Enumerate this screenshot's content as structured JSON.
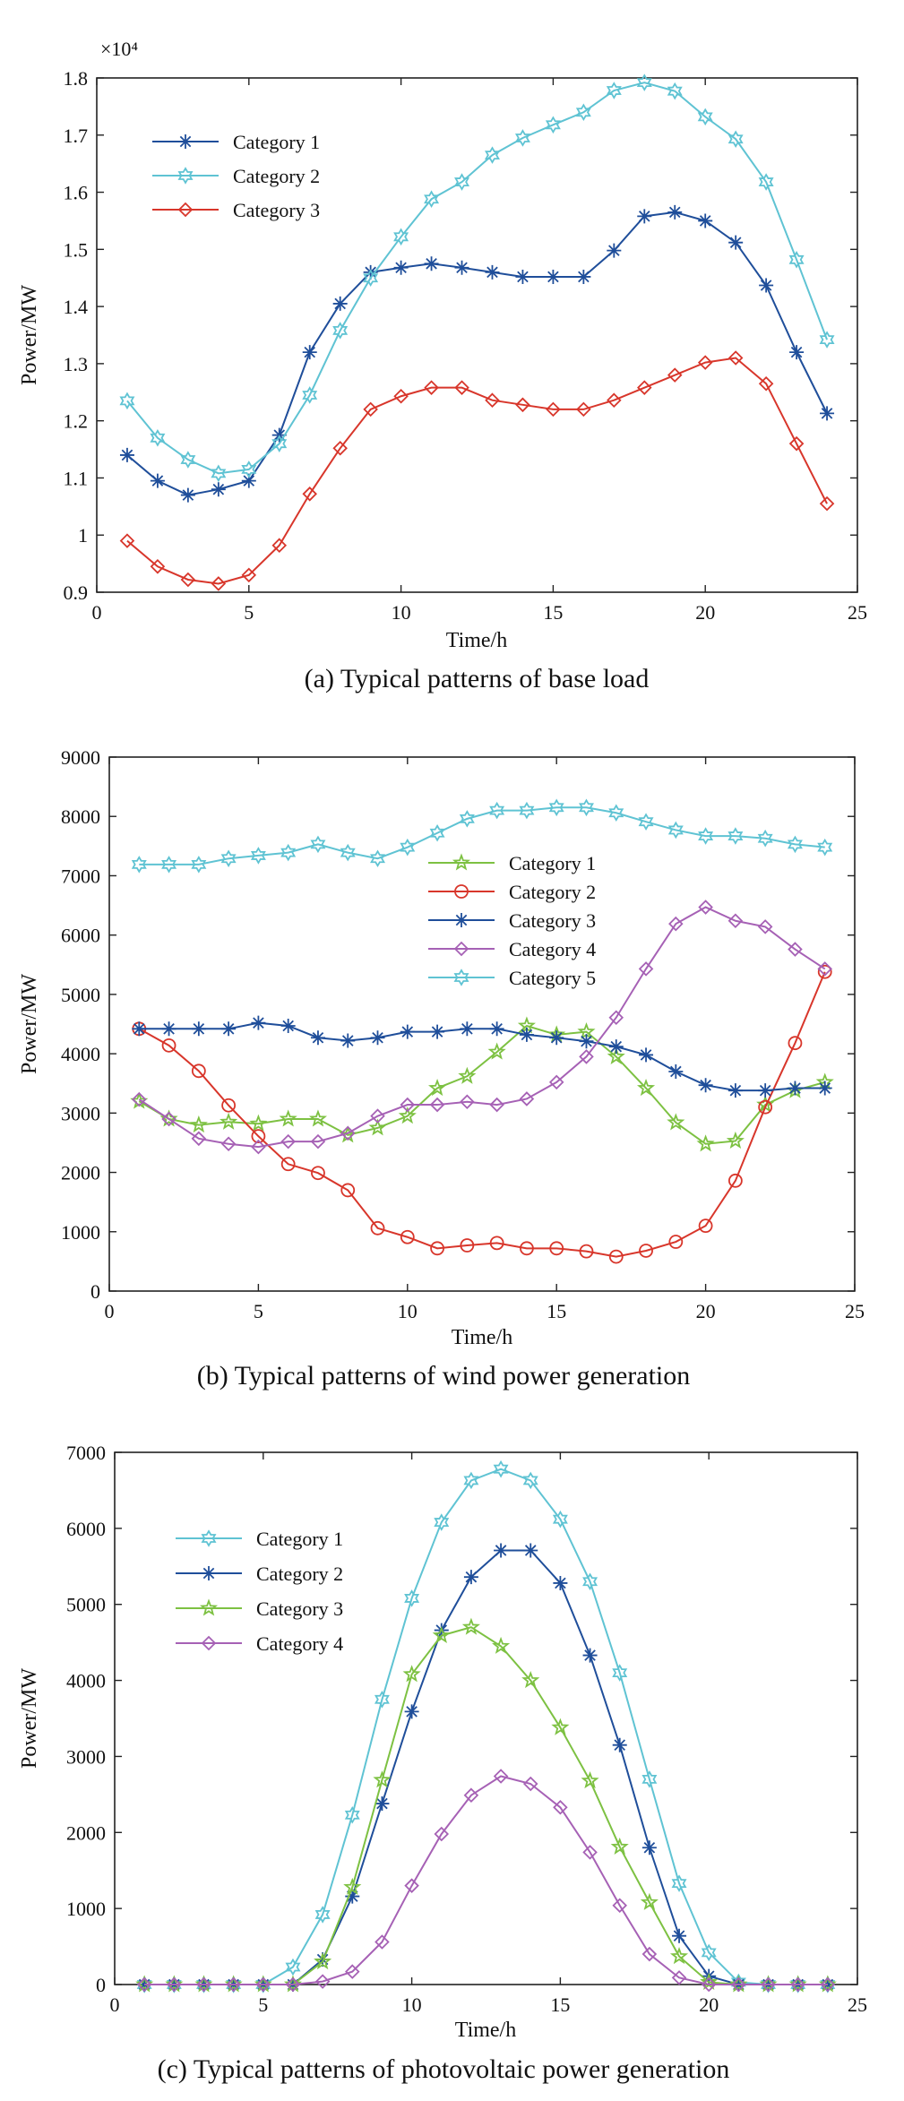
{
  "chart_data": [
    {
      "type": "line",
      "caption": "(a) Typical patterns of base load",
      "xlabel": "Time/h",
      "ylabel": "Power/MW",
      "xlim": [
        0,
        25
      ],
      "ylim": [
        0.9,
        1.8
      ],
      "x_ticks": [
        "0",
        "5",
        "10",
        "15",
        "20",
        "25"
      ],
      "y_ticks": [
        "0.9",
        "1",
        "1.1",
        "1.2",
        "1.3",
        "1.4",
        "1.5",
        "1.6",
        "1.7",
        "1.8"
      ],
      "y_exponent": "×10⁴",
      "legend_position": "upper-left",
      "x": [
        1,
        2,
        3,
        4,
        5,
        6,
        7,
        8,
        9,
        10,
        11,
        12,
        13,
        14,
        15,
        16,
        17,
        18,
        19,
        20,
        21,
        22,
        23,
        24
      ],
      "series": [
        {
          "name": "Category 1",
          "color": "#1f4e9a",
          "marker": "asterisk",
          "values": [
            1.14,
            1.095,
            1.07,
            1.08,
            1.095,
            1.175,
            1.32,
            1.405,
            1.46,
            1.468,
            1.475,
            1.468,
            1.46,
            1.452,
            1.452,
            1.452,
            1.498,
            1.558,
            1.565,
            1.55,
            1.512,
            1.437,
            1.32,
            1.213
          ]
        },
        {
          "name": "Category 2",
          "color": "#5fc3d3",
          "marker": "hexagram",
          "values": [
            1.235,
            1.17,
            1.132,
            1.108,
            1.115,
            1.16,
            1.245,
            1.358,
            1.45,
            1.522,
            1.588,
            1.618,
            1.665,
            1.695,
            1.718,
            1.74,
            1.778,
            1.792,
            1.777,
            1.732,
            1.693,
            1.618,
            1.482,
            1.342
          ]
        },
        {
          "name": "Category 3",
          "color": "#d8362b",
          "marker": "diamond",
          "values": [
            0.99,
            0.945,
            0.922,
            0.915,
            0.93,
            0.982,
            1.072,
            1.152,
            1.22,
            1.243,
            1.258,
            1.258,
            1.236,
            1.228,
            1.22,
            1.22,
            1.236,
            1.258,
            1.28,
            1.302,
            1.31,
            1.265,
            1.16,
            1.055
          ]
        }
      ]
    },
    {
      "type": "line",
      "caption": "(b) Typical patterns of wind power generation",
      "xlabel": "Time/h",
      "ylabel": "Power/MW",
      "xlim": [
        0,
        25
      ],
      "ylim": [
        0,
        9000
      ],
      "x_ticks": [
        "0",
        "5",
        "10",
        "15",
        "20",
        "25"
      ],
      "y_ticks": [
        "0",
        "1000",
        "2000",
        "3000",
        "4000",
        "5000",
        "6000",
        "7000",
        "8000",
        "9000"
      ],
      "legend_position": "center",
      "x": [
        1,
        2,
        3,
        4,
        5,
        6,
        7,
        8,
        9,
        10,
        11,
        12,
        13,
        14,
        15,
        16,
        17,
        18,
        19,
        20,
        21,
        22,
        23,
        24
      ],
      "series": [
        {
          "name": "Category 1",
          "color": "#7dc142",
          "marker": "star",
          "values": [
            3200,
            2900,
            2800,
            2850,
            2820,
            2900,
            2900,
            2630,
            2750,
            2950,
            3420,
            3620,
            4030,
            4470,
            4320,
            4370,
            3950,
            3420,
            2840,
            2480,
            2530,
            3140,
            3380,
            3520
          ]
        },
        {
          "name": "Category 2",
          "color": "#d8362b",
          "marker": "circle",
          "values": [
            4420,
            4140,
            3710,
            3130,
            2610,
            2140,
            1990,
            1700,
            1060,
            910,
            720,
            770,
            810,
            720,
            720,
            670,
            580,
            680,
            830,
            1100,
            1860,
            3100,
            4180,
            5380
          ]
        },
        {
          "name": "Category 3",
          "color": "#1f4e9a",
          "marker": "asterisk",
          "values": [
            4420,
            4420,
            4420,
            4420,
            4520,
            4470,
            4270,
            4220,
            4270,
            4370,
            4370,
            4420,
            4420,
            4320,
            4270,
            4210,
            4120,
            3980,
            3700,
            3470,
            3380,
            3380,
            3420,
            3420
          ]
        },
        {
          "name": "Category 4",
          "color": "#a661b5",
          "marker": "diamond",
          "values": [
            3230,
            2900,
            2570,
            2480,
            2430,
            2520,
            2520,
            2660,
            2950,
            3140,
            3140,
            3190,
            3140,
            3240,
            3520,
            3950,
            4610,
            5430,
            6190,
            6470,
            6240,
            6140,
            5760,
            5430
          ]
        },
        {
          "name": "Category 5",
          "color": "#5fc3d3",
          "marker": "hexagram",
          "values": [
            7190,
            7190,
            7190,
            7290,
            7340,
            7390,
            7530,
            7390,
            7290,
            7480,
            7720,
            7960,
            8100,
            8100,
            8150,
            8150,
            8060,
            7910,
            7770,
            7670,
            7670,
            7630,
            7530,
            7480
          ]
        }
      ]
    },
    {
      "type": "line",
      "caption": "(c) Typical patterns of photovoltaic power generation",
      "xlabel": "Time/h",
      "ylabel": "Power/MW",
      "xlim": [
        0,
        25
      ],
      "ylim": [
        0,
        7000
      ],
      "x_ticks": [
        "0",
        "5",
        "10",
        "15",
        "20",
        "25"
      ],
      "y_ticks": [
        "0",
        "1000",
        "2000",
        "3000",
        "4000",
        "5000",
        "6000",
        "7000"
      ],
      "legend_position": "upper-left",
      "x": [
        1,
        2,
        3,
        4,
        5,
        6,
        7,
        8,
        9,
        10,
        11,
        12,
        13,
        14,
        15,
        16,
        17,
        18,
        19,
        20,
        21,
        22,
        23,
        24
      ],
      "series": [
        {
          "name": "Category 1",
          "color": "#5fc3d3",
          "marker": "hexagram",
          "values": [
            0,
            0,
            0,
            0,
            0,
            230,
            920,
            2230,
            3750,
            5080,
            6080,
            6630,
            6780,
            6630,
            6120,
            5300,
            4100,
            2700,
            1330,
            420,
            30,
            0,
            0,
            0
          ]
        },
        {
          "name": "Category 2",
          "color": "#1f4e9a",
          "marker": "asterisk",
          "values": [
            0,
            0,
            0,
            0,
            0,
            0,
            330,
            1160,
            2380,
            3590,
            4660,
            5360,
            5710,
            5710,
            5280,
            4330,
            3150,
            1800,
            640,
            110,
            0,
            0,
            0,
            0
          ]
        },
        {
          "name": "Category 3",
          "color": "#7dc142",
          "marker": "star",
          "values": [
            0,
            0,
            0,
            0,
            0,
            0,
            300,
            1280,
            2690,
            4080,
            4590,
            4700,
            4450,
            4000,
            3380,
            2680,
            1810,
            1080,
            370,
            30,
            0,
            0,
            0,
            0
          ]
        },
        {
          "name": "Category 4",
          "color": "#a661b5",
          "marker": "diamond",
          "values": [
            0,
            0,
            0,
            0,
            0,
            0,
            40,
            170,
            560,
            1300,
            1980,
            2490,
            2740,
            2640,
            2330,
            1740,
            1040,
            400,
            90,
            0,
            0,
            0,
            0,
            0
          ]
        }
      ]
    }
  ]
}
